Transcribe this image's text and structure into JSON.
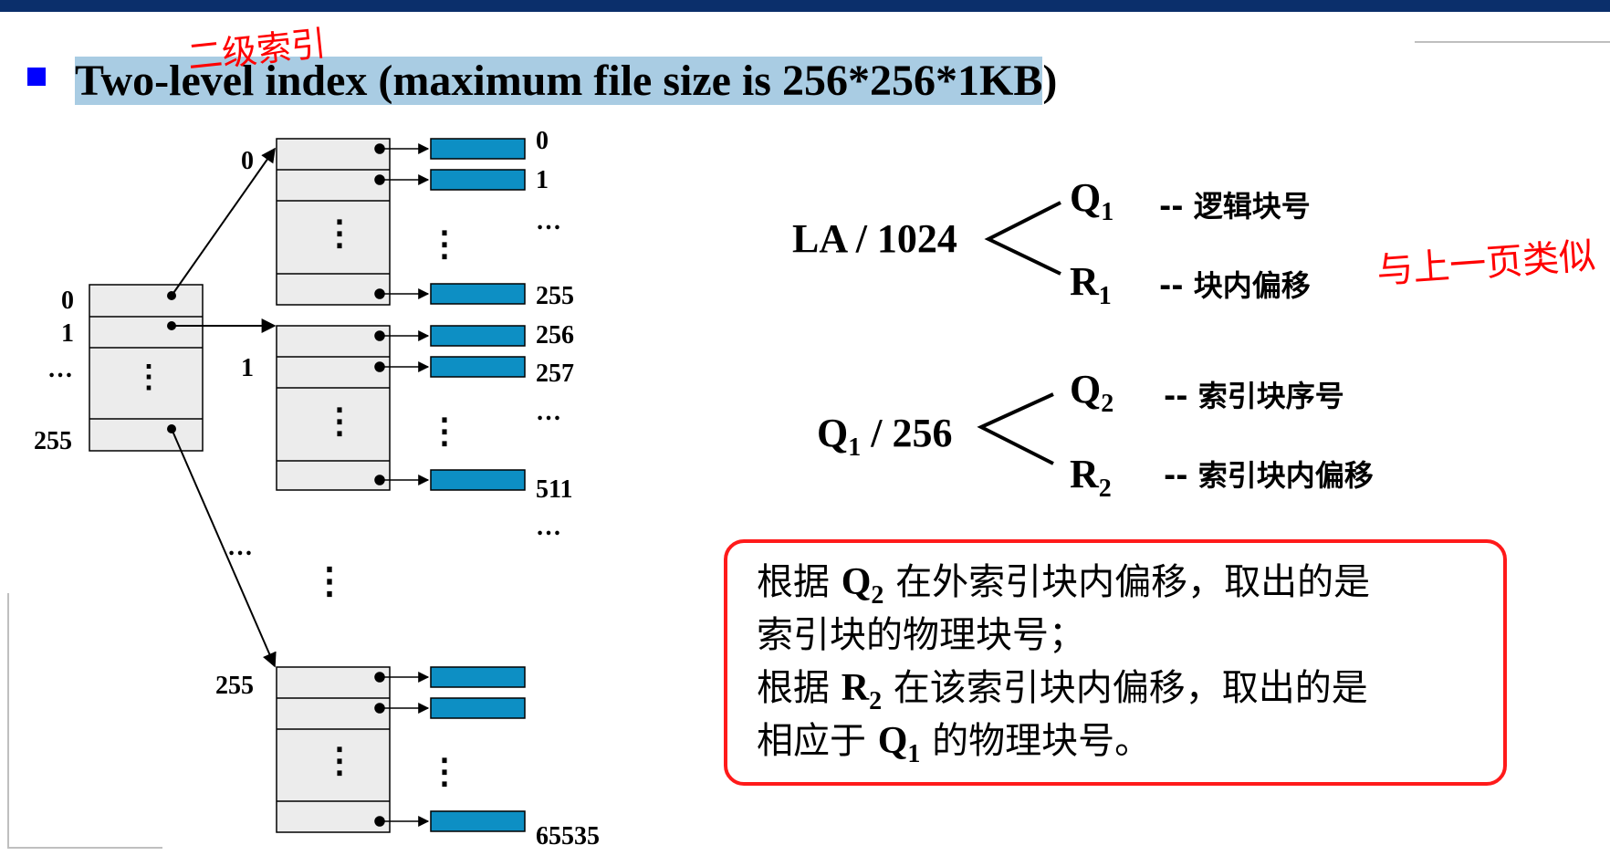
{
  "slide": {
    "title": "Two-level index (maximum file size is 256*256*1KB",
    "title_tail": ")",
    "annotation_top": "二级索引",
    "annotation_side": "与上一页类似"
  },
  "diagram": {
    "outer_labels": [
      "0",
      "1",
      "…",
      "255"
    ],
    "branch_labels": [
      "0",
      "1",
      "…",
      "255"
    ],
    "inner_dots": "⋮",
    "block_labels": [
      "0",
      "1",
      "…",
      "255",
      "256",
      "257",
      "…",
      "511",
      "…",
      "65535"
    ],
    "colors": {
      "block": "#0d8fc4",
      "table": "#ececec",
      "line": "#000000"
    }
  },
  "formulas": {
    "f1": {
      "left": "LA / 1024",
      "q_base": "Q",
      "q_sub": "1",
      "r_base": "R",
      "r_sub": "1",
      "q_desc": "-- 逻辑块号",
      "r_desc": "-- 块内偏移"
    },
    "f2": {
      "left_base": "Q",
      "left_sub": "1",
      "left_tail": " / 256",
      "q_base": "Q",
      "q_sub": "2",
      "r_base": "R",
      "r_sub": "2",
      "q_desc": "-- 索引块序号",
      "r_desc": "-- 索引块内偏移"
    }
  },
  "note": {
    "line1_pre": "根据 ",
    "line1_base": "Q",
    "line1_sub": "2",
    "line1_post": " 在外索引块内偏移，取出的是",
    "line2": "索引块的物理块号；",
    "line3_pre": "根据 ",
    "line3_base": "R",
    "line3_sub": "2",
    "line3_post": " 在该索引块内偏移，取出的是",
    "line4_pre": "相应于 ",
    "line4_base": "Q",
    "line4_sub": "1",
    "line4_post": " 的物理块号。"
  }
}
